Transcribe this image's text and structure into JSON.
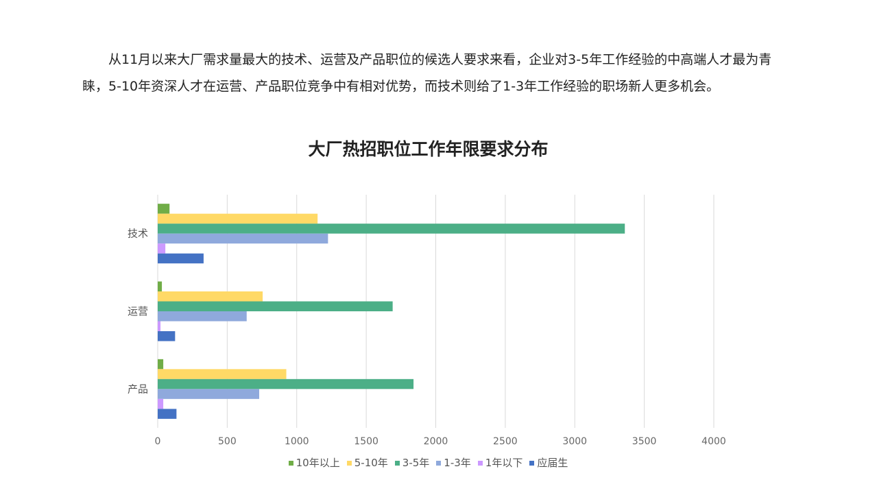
{
  "paragraph": "从11月以来大厂需求量最大的技术、运营及产品职位的候选人要求来看，企业对3-5年工作经验的中高端人才最为青睐，5-10年资深人才在运营、产品职位竞争中有相对优势，而技术则给了1-3年工作经验的职场新人更多机会。",
  "chart_data": {
    "type": "bar",
    "orientation": "horizontal",
    "title": "大厂热招职位工作年限要求分布",
    "categories": [
      "技术",
      "运营",
      "产品"
    ],
    "series": [
      {
        "name": "10年以上",
        "color": "#70ad47",
        "values": [
          85,
          30,
          40
        ]
      },
      {
        "name": "5-10年",
        "color": "#ffd966",
        "values": [
          1150,
          755,
          925
        ]
      },
      {
        "name": "3-5年",
        "color": "#4caf87",
        "values": [
          3360,
          1690,
          1840
        ]
      },
      {
        "name": "1-3年",
        "color": "#8fa9dc",
        "values": [
          1225,
          640,
          730
        ]
      },
      {
        "name": "1年以下",
        "color": "#cc99ff",
        "values": [
          55,
          20,
          40
        ]
      },
      {
        "name": "应届生",
        "color": "#4472c4",
        "values": [
          330,
          125,
          135
        ]
      }
    ],
    "xlim": [
      0,
      4000
    ],
    "xticks": [
      0,
      500,
      1000,
      1500,
      2000,
      2500,
      3000,
      3500,
      4000
    ],
    "grid": true,
    "legend_position": "bottom"
  }
}
